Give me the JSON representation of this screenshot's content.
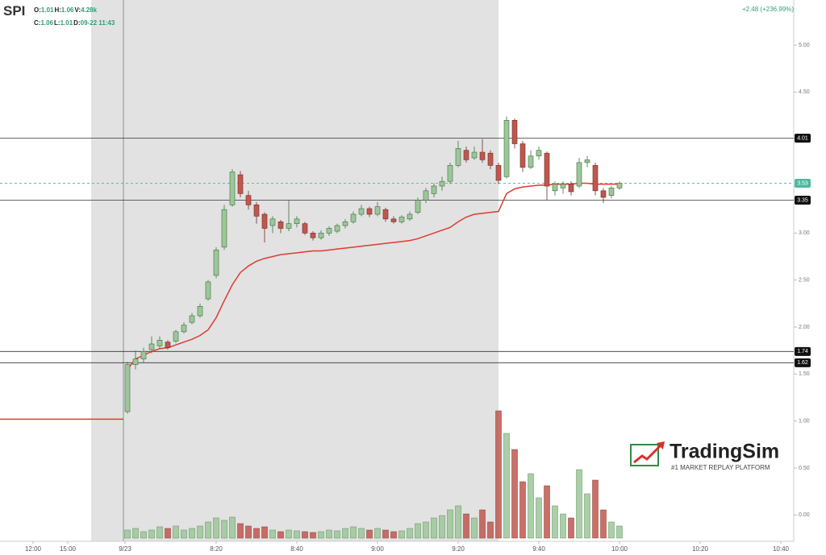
{
  "chart_data": {
    "type": "candlestick",
    "symbol": "SPI",
    "info_rows": [
      [
        [
          "O:",
          "1.01"
        ],
        [
          "H:",
          "1.06"
        ],
        [
          "V:",
          "4.28k"
        ]
      ],
      [
        [
          "C:",
          "1.06"
        ],
        [
          "L:",
          "1.01"
        ],
        [
          "D:",
          "09-22 11:43"
        ]
      ]
    ],
    "change": "+2.48 (+236.99%)",
    "up_color": "#9cc79a",
    "down_color": "#c0574f",
    "vwap_color": "#e03a2f",
    "xlim": [
      -33.6,
      163.2
    ],
    "ylim": [
      -0.28,
      5.48
    ],
    "xticks": [
      {
        "value": -25.4,
        "label": "12:00"
      },
      {
        "value": -16.8,
        "label": "15:00"
      },
      {
        "value": -2.6,
        "label": "9/23"
      },
      {
        "value": 20,
        "label": "8:20"
      },
      {
        "value": 40,
        "label": "8:40"
      },
      {
        "value": 60,
        "label": "9:00"
      },
      {
        "value": 80,
        "label": "9:20"
      },
      {
        "value": 100,
        "label": "9:40"
      },
      {
        "value": 120,
        "label": "10:00"
      },
      {
        "value": 140,
        "label": "10:20"
      },
      {
        "value": 160,
        "label": "10:40"
      }
    ],
    "yticks": [
      {
        "value": 0,
        "label": "0.00"
      },
      {
        "value": 0.5,
        "label": "0.50"
      },
      {
        "value": 1,
        "label": "1.00"
      },
      {
        "value": 1.5,
        "label": "1.50"
      },
      {
        "value": 2,
        "label": "2.00"
      },
      {
        "value": 2.5,
        "label": "2.50"
      },
      {
        "value": 3,
        "label": "3.00"
      },
      {
        "value": 3.5,
        "label": "3.50"
      },
      {
        "value": 4,
        "label": "4.00"
      },
      {
        "value": 4.5,
        "label": "4.50"
      },
      {
        "value": 5,
        "label": "5.00"
      }
    ],
    "extended_hours": [
      -11,
      90
    ],
    "levels": [
      4.01,
      3.35,
      1.74,
      1.62
    ],
    "last_price": 3.53,
    "premarket": {
      "x": [
        -33.6,
        -3
      ],
      "values": [
        1.02,
        1.02
      ]
    },
    "x": [
      -2,
      0,
      2,
      4,
      6,
      8,
      10,
      12,
      14,
      16,
      18,
      20,
      22,
      24,
      26,
      28,
      30,
      32,
      34,
      36,
      38,
      40,
      42,
      44,
      46,
      48,
      50,
      52,
      54,
      56,
      58,
      60,
      62,
      64,
      66,
      68,
      70,
      72,
      74,
      76,
      78,
      80,
      82,
      84,
      86,
      88,
      90,
      92,
      94,
      96,
      98,
      100,
      102,
      104,
      106,
      108,
      110,
      112,
      114,
      116,
      118,
      120
    ],
    "open": [
      1.1,
      1.6,
      1.66,
      1.76,
      1.8,
      1.84,
      1.85,
      1.95,
      2.05,
      2.12,
      2.3,
      2.55,
      2.85,
      3.3,
      3.62,
      3.4,
      3.3,
      3.2,
      3.08,
      3.12,
      3.05,
      3.1,
      3.1,
      3.0,
      2.95,
      3.0,
      3.02,
      3.08,
      3.12,
      3.2,
      3.26,
      3.2,
      3.25,
      3.15,
      3.12,
      3.15,
      3.22,
      3.35,
      3.42,
      3.5,
      3.55,
      3.72,
      3.88,
      3.8,
      3.86,
      3.85,
      3.72,
      3.6,
      4.2,
      3.95,
      3.7,
      3.82,
      3.85,
      3.45,
      3.48,
      3.52,
      3.5,
      3.75,
      3.72,
      3.45,
      3.4,
      3.48
    ],
    "high": [
      1.63,
      1.75,
      1.78,
      1.9,
      1.9,
      1.86,
      1.97,
      2.05,
      2.15,
      2.25,
      2.5,
      2.85,
      3.3,
      3.68,
      3.66,
      3.45,
      3.33,
      3.22,
      3.18,
      3.14,
      3.35,
      3.18,
      3.12,
      3.02,
      3.03,
      3.07,
      3.1,
      3.15,
      3.23,
      3.3,
      3.28,
      3.33,
      3.27,
      3.18,
      3.19,
      3.23,
      3.38,
      3.48,
      3.53,
      3.6,
      3.75,
      3.98,
      3.92,
      3.92,
      4.0,
      3.88,
      3.75,
      4.24,
      4.22,
      3.98,
      3.88,
      3.92,
      3.87,
      3.55,
      3.55,
      3.55,
      3.8,
      3.82,
      3.75,
      3.48,
      3.5,
      3.55
    ],
    "low": [
      1.08,
      1.55,
      1.62,
      1.72,
      1.77,
      1.76,
      1.83,
      1.93,
      2.03,
      2.1,
      2.28,
      2.52,
      2.82,
      3.28,
      3.38,
      3.25,
      3.1,
      2.9,
      3.0,
      3.0,
      3.02,
      3.06,
      2.98,
      2.92,
      2.93,
      2.97,
      3.0,
      3.05,
      3.1,
      3.18,
      3.17,
      3.18,
      3.12,
      3.1,
      3.1,
      3.13,
      3.2,
      3.32,
      3.38,
      3.45,
      3.52,
      3.7,
      3.75,
      3.78,
      3.75,
      3.68,
      3.52,
      3.58,
      3.9,
      3.65,
      3.68,
      3.78,
      3.35,
      3.4,
      3.42,
      3.4,
      3.48,
      3.7,
      3.4,
      3.32,
      3.37,
      3.46
    ],
    "close": [
      1.6,
      1.66,
      1.74,
      1.82,
      1.86,
      1.78,
      1.95,
      2.02,
      2.12,
      2.22,
      2.48,
      2.82,
      3.25,
      3.65,
      3.42,
      3.3,
      3.18,
      3.05,
      3.15,
      3.05,
      3.1,
      3.15,
      3.0,
      2.95,
      3.0,
      3.05,
      3.08,
      3.12,
      3.2,
      3.26,
      3.2,
      3.28,
      3.15,
      3.12,
      3.17,
      3.2,
      3.35,
      3.45,
      3.5,
      3.55,
      3.72,
      3.9,
      3.78,
      3.86,
      3.78,
      3.72,
      3.56,
      4.2,
      3.95,
      3.7,
      3.82,
      3.88,
      3.5,
      3.52,
      3.52,
      3.44,
      3.75,
      3.78,
      3.45,
      3.38,
      3.48,
      3.53
    ],
    "volume": [
      10,
      12,
      8,
      10,
      14,
      12,
      15,
      10,
      12,
      15,
      20,
      25,
      22,
      26,
      18,
      15,
      12,
      14,
      10,
      8,
      10,
      9,
      8,
      7,
      8,
      10,
      9,
      12,
      14,
      12,
      10,
      12,
      10,
      8,
      9,
      12,
      18,
      20,
      25,
      28,
      35,
      40,
      30,
      25,
      35,
      20,
      158,
      130,
      110,
      70,
      80,
      50,
      65,
      40,
      30,
      25,
      85,
      55,
      72,
      35,
      20,
      15
    ],
    "vwap": [
      1.55,
      1.66,
      1.7,
      1.74,
      1.77,
      1.78,
      1.81,
      1.84,
      1.87,
      1.91,
      1.97,
      2.1,
      2.28,
      2.45,
      2.58,
      2.65,
      2.7,
      2.73,
      2.75,
      2.77,
      2.78,
      2.79,
      2.8,
      2.81,
      2.81,
      2.82,
      2.83,
      2.84,
      2.85,
      2.86,
      2.87,
      2.88,
      2.89,
      2.9,
      2.91,
      2.92,
      2.94,
      2.97,
      3.0,
      3.03,
      3.06,
      3.12,
      3.17,
      3.2,
      3.21,
      3.22,
      3.23,
      3.42,
      3.47,
      3.49,
      3.5,
      3.51,
      3.51,
      3.52,
      3.52,
      3.52,
      3.53,
      3.53,
      3.52,
      3.52,
      3.52,
      3.52
    ],
    "logo": {
      "name": "TradingSim",
      "tagline": "#1 MARKET REPLAY PLATFORM"
    }
  }
}
